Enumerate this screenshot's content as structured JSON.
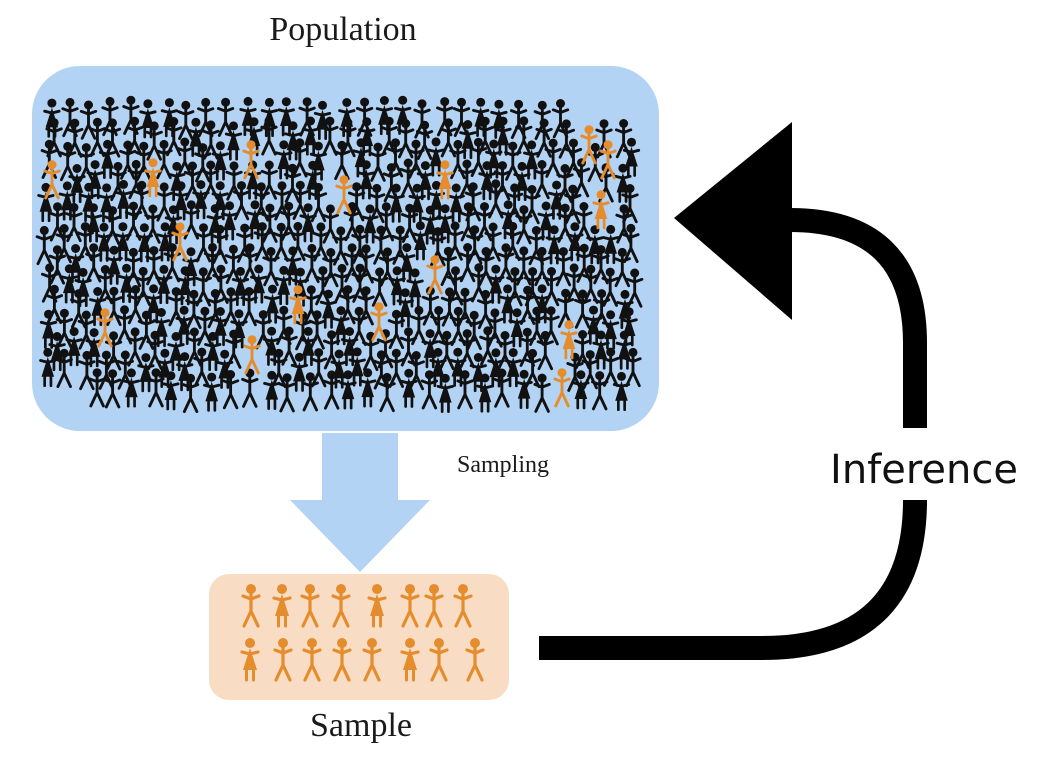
{
  "labels": {
    "population": "Population",
    "sampling": "Sampling",
    "sample": "Sample",
    "inference": "Inference"
  },
  "colors": {
    "population_bg": "#b3d3f5",
    "sample_bg": "#f8dcc4",
    "sampling_arrow": "#b3d3f5",
    "person_default": "#111111",
    "person_sampled": "#e58c2c",
    "inference_arrow": "#000000"
  },
  "icons": {
    "person": "stick-figure-icon",
    "person_female": "stick-figure-dress-icon"
  }
}
